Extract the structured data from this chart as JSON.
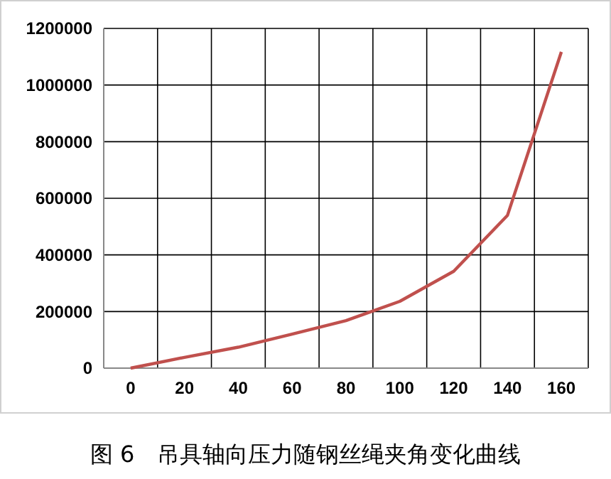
{
  "chart_data": {
    "type": "line",
    "title": "图 6　吊具轴向压力随钢丝绳夹角变化曲线",
    "categories": [
      "0",
      "20",
      "40",
      "60",
      "80",
      "100",
      "120",
      "140",
      "160"
    ],
    "series": [
      {
        "color": "#c0504d",
        "values": [
          0,
          38000,
          74000,
          120000,
          168000,
          236000,
          342000,
          540000,
          1117000
        ]
      }
    ],
    "ylim": [
      0,
      1200000
    ],
    "yticks": [
      0,
      200000,
      400000,
      600000,
      800000,
      1000000,
      1200000
    ],
    "grid": true,
    "marker": "none",
    "line_style": "solid"
  }
}
